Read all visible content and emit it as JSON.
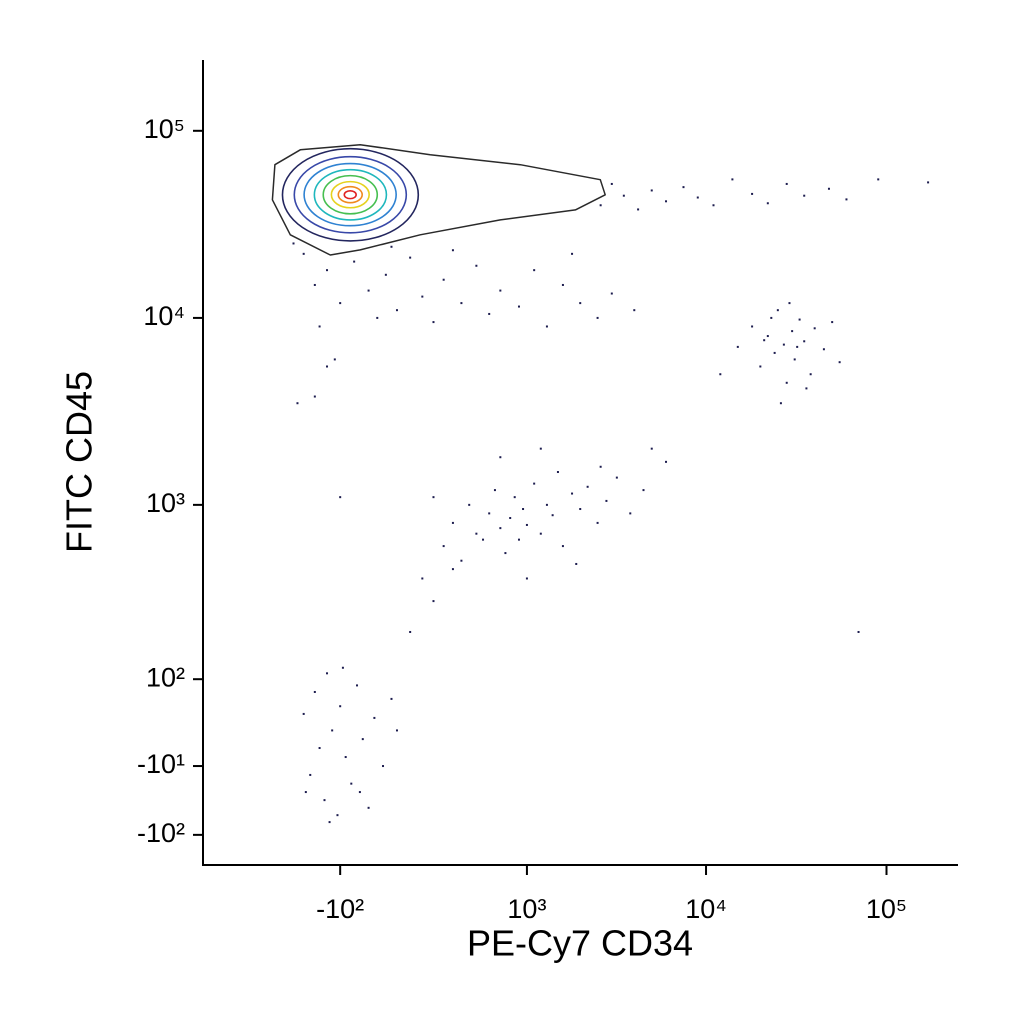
{
  "chart_data": {
    "type": "scatter",
    "x_label": "PE-Cy7 CD34",
    "y_label": "FITC CD45",
    "xscale": {
      "type": "biexponential",
      "linear_width": 135
    },
    "yscale": {
      "type": "biexponential",
      "linear_width": 45
    },
    "xlim": [
      -1100,
      249000
    ],
    "ylim": [
      -158,
      239000
    ],
    "xticks": [
      {
        "value": -100,
        "label": "-10²"
      },
      {
        "value": 1000,
        "label": "10³"
      },
      {
        "value": 10000,
        "label": "10⁴"
      },
      {
        "value": 100000,
        "label": "10⁵"
      }
    ],
    "yticks": [
      {
        "value": 100000,
        "label": "10⁵"
      },
      {
        "value": 10000,
        "label": "10⁴"
      },
      {
        "value": 1000,
        "label": "10³"
      },
      {
        "value": 100,
        "label": "10²"
      },
      {
        "value": -10,
        "label": "-10¹"
      },
      {
        "value": -100,
        "label": "-10²"
      }
    ],
    "color": "#1c1c4e",
    "x": [
      700,
      900,
      1200,
      1500,
      1800,
      2200,
      2600,
      3000,
      3500,
      4200,
      5000,
      6000,
      7500,
      9000,
      11000,
      14000,
      18000,
      22000,
      28000,
      35000,
      48000,
      60000,
      170000,
      90000,
      -250,
      -200,
      -150,
      -100,
      -50,
      0,
      30,
      60,
      100,
      150,
      200,
      250,
      300,
      400,
      500,
      600,
      700,
      900,
      1100,
      1300,
      1600,
      2000,
      2500,
      3000,
      4000,
      -300,
      -180,
      80,
      350,
      1800,
      -120,
      -280,
      15000,
      18000,
      20000,
      22000,
      24000,
      25000,
      27000,
      28000,
      30000,
      31000,
      33000,
      35000,
      38000,
      40000,
      45000,
      50000,
      55000,
      26000,
      29000,
      23000,
      36000,
      32000,
      21000,
      12000,
      300,
      350,
      400,
      450,
      500,
      550,
      600,
      650,
      700,
      750,
      800,
      850,
      900,
      950,
      1000,
      1100,
      1200,
      1300,
      1400,
      1500,
      1600,
      1800,
      2000,
      2200,
      2500,
      2800,
      3200,
      3800,
      4500,
      5000,
      6000,
      1900,
      1000,
      700,
      2600,
      200,
      250,
      1200,
      -250,
      -220,
      -200,
      -180,
      -160,
      -150,
      -130,
      -110,
      -100,
      -80,
      -60,
      -40,
      -20,
      0,
      20,
      50,
      80,
      -90,
      -140,
      -30,
      100,
      -240,
      150,
      250,
      350,
      -100,
      -200,
      70000,
      -150
    ],
    "values": [
      52000,
      48000,
      45000,
      50000,
      42000,
      47000,
      40000,
      52000,
      45000,
      38000,
      48000,
      42000,
      50000,
      44000,
      40000,
      55000,
      46000,
      41000,
      52000,
      45000,
      49000,
      43000,
      53000,
      55000,
      22000,
      15000,
      18000,
      12000,
      20000,
      14000,
      10000,
      17000,
      11000,
      21000,
      13000,
      9500,
      16000,
      12000,
      19000,
      10500,
      14000,
      11500,
      18000,
      9000,
      15000,
      12000,
      10000,
      13500,
      11000,
      25000,
      9000,
      24000,
      23000,
      22000,
      6000,
      3500,
      7000,
      9000,
      5500,
      8000,
      6500,
      11000,
      7200,
      4500,
      8500,
      6000,
      9800,
      7500,
      5000,
      8800,
      6800,
      9500,
      5800,
      3500,
      12000,
      10000,
      4200,
      7000,
      7600,
      5000,
      600,
      800,
      500,
      1000,
      700,
      650,
      900,
      1200,
      750,
      550,
      850,
      1100,
      650,
      950,
      780,
      1300,
      700,
      1000,
      880,
      1500,
      600,
      1150,
      950,
      1250,
      800,
      1050,
      1400,
      900,
      1200,
      2000,
      1700,
      480,
      400,
      1800,
      1600,
      400,
      1100,
      2000,
      50,
      -20,
      80,
      10,
      -50,
      110,
      30,
      -70,
      60,
      0,
      -30,
      90,
      20,
      -60,
      45,
      -10,
      70,
      120,
      -80,
      -40,
      30,
      -40,
      200,
      300,
      450,
      1100,
      3800,
      200,
      5500
    ],
    "outer_contour": {
      "color": "#2a2a2a",
      "x": [
        -405,
        -266,
        -29,
        235,
        916,
        2590,
        2757,
        1880,
        700,
        191,
        -29,
        -137,
        -317,
        -421
      ],
      "y": [
        65900,
        79200,
        84300,
        74500,
        65900,
        54800,
        45500,
        37800,
        33400,
        27800,
        23100,
        21700,
        27800,
        42800
      ]
    },
    "contours": [
      {
        "color": "#23265e",
        "x": [
          -360,
          183
        ],
        "y": [
          25800,
          80200
        ]
      },
      {
        "color": "#3848a8",
        "x": [
          -296,
          135
        ],
        "y": [
          28500,
          72700
        ]
      },
      {
        "color": "#2f82d2",
        "x": [
          -248,
          97
        ],
        "y": [
          31100,
          66800
        ]
      },
      {
        "color": "#1fb7bd",
        "x": [
          -202,
          62
        ],
        "y": [
          33400,
          62000
        ]
      },
      {
        "color": "#46bf50",
        "x": [
          -165,
          30
        ],
        "y": [
          36000,
          57600
        ]
      },
      {
        "color": "#e6d21e",
        "x": [
          -133,
          2
        ],
        "y": [
          38800,
          53500
        ]
      },
      {
        "color": "#f08a20",
        "x": [
          -107,
          -22
        ],
        "y": [
          41300,
          50300
        ]
      },
      {
        "color": "#e02222",
        "x": [
          -85,
          -43
        ],
        "y": [
          43400,
          47800
        ]
      }
    ]
  }
}
